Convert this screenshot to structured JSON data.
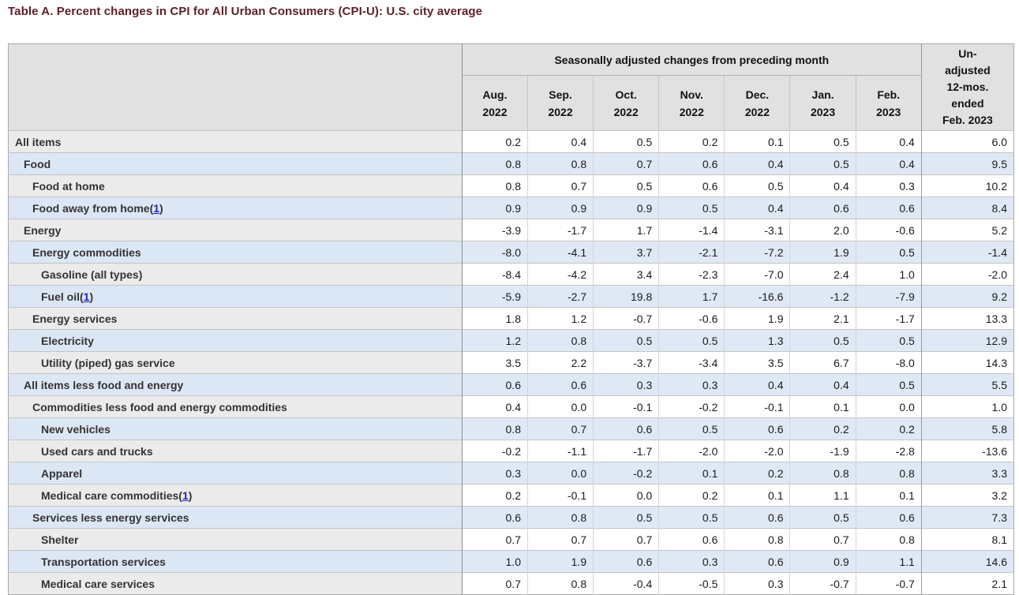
{
  "title": "Table A. Percent changes in CPI for All Urban Consumers (CPI-U): U.S. city average",
  "colors": {
    "title_color": "#5c1f27",
    "header_bg": "#e1e1e1",
    "stub_gray": "#ebebeb",
    "row_blue": "#dce7f5",
    "data_white": "#ffffff",
    "footnote_link_blue": "#2323c8",
    "border_dark": "#8f8f8f",
    "border_light": "#d4d4d4"
  },
  "table": {
    "footnote_open": "(",
    "footnote_close": ")",
    "header": {
      "group_label": "Seasonally adjusted changes from preceding month",
      "unadjusted_lines": [
        "Un-",
        "adjusted",
        "12-mos.",
        "ended",
        "Feb. 2023"
      ],
      "months": [
        {
          "line1": "Aug.",
          "line2": "2022"
        },
        {
          "line1": "Sep.",
          "line2": "2022"
        },
        {
          "line1": "Oct.",
          "line2": "2022"
        },
        {
          "line1": "Nov.",
          "line2": "2022"
        },
        {
          "line1": "Dec.",
          "line2": "2022"
        },
        {
          "line1": "Jan.",
          "line2": "2023"
        },
        {
          "line1": "Feb.",
          "line2": "2023"
        }
      ]
    },
    "rows": [
      {
        "label": "All items",
        "indent": 0,
        "footnote": null,
        "values": [
          "0.2",
          "0.4",
          "0.5",
          "0.2",
          "0.1",
          "0.5",
          "0.4",
          "6.0"
        ]
      },
      {
        "label": "Food",
        "indent": 1,
        "footnote": null,
        "values": [
          "0.8",
          "0.8",
          "0.7",
          "0.6",
          "0.4",
          "0.5",
          "0.4",
          "9.5"
        ]
      },
      {
        "label": "Food at home",
        "indent": 2,
        "footnote": null,
        "values": [
          "0.8",
          "0.7",
          "0.5",
          "0.6",
          "0.5",
          "0.4",
          "0.3",
          "10.2"
        ]
      },
      {
        "label": "Food away from home",
        "indent": 2,
        "footnote": "1",
        "values": [
          "0.9",
          "0.9",
          "0.9",
          "0.5",
          "0.4",
          "0.6",
          "0.6",
          "8.4"
        ]
      },
      {
        "label": "Energy",
        "indent": 1,
        "footnote": null,
        "values": [
          "-3.9",
          "-1.7",
          "1.7",
          "-1.4",
          "-3.1",
          "2.0",
          "-0.6",
          "5.2"
        ]
      },
      {
        "label": "Energy commodities",
        "indent": 2,
        "footnote": null,
        "values": [
          "-8.0",
          "-4.1",
          "3.7",
          "-2.1",
          "-7.2",
          "1.9",
          "0.5",
          "-1.4"
        ]
      },
      {
        "label": "Gasoline (all types)",
        "indent": 3,
        "footnote": null,
        "values": [
          "-8.4",
          "-4.2",
          "3.4",
          "-2.3",
          "-7.0",
          "2.4",
          "1.0",
          "-2.0"
        ]
      },
      {
        "label": "Fuel oil",
        "indent": 3,
        "footnote": "1",
        "values": [
          "-5.9",
          "-2.7",
          "19.8",
          "1.7",
          "-16.6",
          "-1.2",
          "-7.9",
          "9.2"
        ]
      },
      {
        "label": "Energy services",
        "indent": 2,
        "footnote": null,
        "values": [
          "1.8",
          "1.2",
          "-0.7",
          "-0.6",
          "1.9",
          "2.1",
          "-1.7",
          "13.3"
        ]
      },
      {
        "label": "Electricity",
        "indent": 3,
        "footnote": null,
        "values": [
          "1.2",
          "0.8",
          "0.5",
          "0.5",
          "1.3",
          "0.5",
          "0.5",
          "12.9"
        ]
      },
      {
        "label": "Utility (piped) gas service",
        "indent": 3,
        "footnote": null,
        "values": [
          "3.5",
          "2.2",
          "-3.7",
          "-3.4",
          "3.5",
          "6.7",
          "-8.0",
          "14.3"
        ]
      },
      {
        "label": "All items less food and energy",
        "indent": 1,
        "footnote": null,
        "values": [
          "0.6",
          "0.6",
          "0.3",
          "0.3",
          "0.4",
          "0.4",
          "0.5",
          "5.5"
        ]
      },
      {
        "label": "Commodities less food and energy commodities",
        "indent": 2,
        "footnote": null,
        "values": [
          "0.4",
          "0.0",
          "-0.1",
          "-0.2",
          "-0.1",
          "0.1",
          "0.0",
          "1.0"
        ]
      },
      {
        "label": "New vehicles",
        "indent": 3,
        "footnote": null,
        "values": [
          "0.8",
          "0.7",
          "0.6",
          "0.5",
          "0.6",
          "0.2",
          "0.2",
          "5.8"
        ]
      },
      {
        "label": "Used cars and trucks",
        "indent": 3,
        "footnote": null,
        "values": [
          "-0.2",
          "-1.1",
          "-1.7",
          "-2.0",
          "-2.0",
          "-1.9",
          "-2.8",
          "-13.6"
        ]
      },
      {
        "label": "Apparel",
        "indent": 3,
        "footnote": null,
        "values": [
          "0.3",
          "0.0",
          "-0.2",
          "0.1",
          "0.2",
          "0.8",
          "0.8",
          "3.3"
        ]
      },
      {
        "label": "Medical care commodities",
        "indent": 3,
        "footnote": "1",
        "values": [
          "0.2",
          "-0.1",
          "0.0",
          "0.2",
          "0.1",
          "1.1",
          "0.1",
          "3.2"
        ]
      },
      {
        "label": "Services less energy services",
        "indent": 2,
        "footnote": null,
        "values": [
          "0.6",
          "0.8",
          "0.5",
          "0.5",
          "0.6",
          "0.5",
          "0.6",
          "7.3"
        ]
      },
      {
        "label": "Shelter",
        "indent": 3,
        "footnote": null,
        "values": [
          "0.7",
          "0.7",
          "0.7",
          "0.6",
          "0.8",
          "0.7",
          "0.8",
          "8.1"
        ]
      },
      {
        "label": "Transportation services",
        "indent": 3,
        "footnote": null,
        "values": [
          "1.0",
          "1.9",
          "0.6",
          "0.3",
          "0.6",
          "0.9",
          "1.1",
          "14.6"
        ]
      },
      {
        "label": "Medical care services",
        "indent": 3,
        "footnote": null,
        "values": [
          "0.7",
          "0.8",
          "-0.4",
          "-0.5",
          "0.3",
          "-0.7",
          "-0.7",
          "2.1"
        ]
      }
    ]
  }
}
